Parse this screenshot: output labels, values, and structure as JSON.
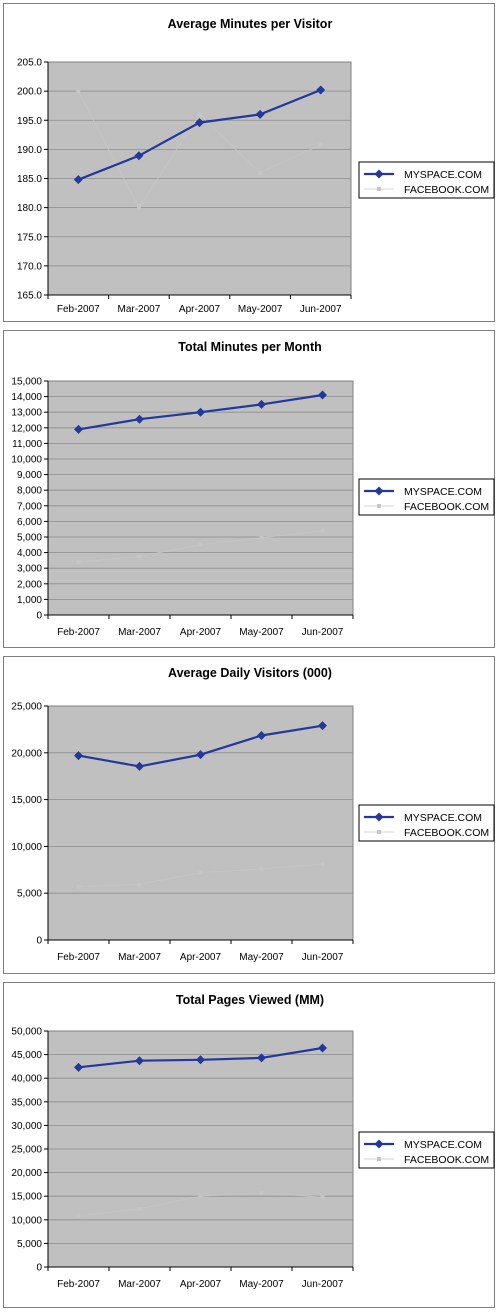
{
  "chart_data": [
    {
      "type": "line",
      "title": "Average Minutes per Visitor",
      "categories": [
        "Feb-2007",
        "Mar-2007",
        "Apr-2007",
        "May-2007",
        "Jun-2007"
      ],
      "ylim": [
        165,
        205
      ],
      "yticks": [
        "165.0",
        "170.0",
        "175.0",
        "180.0",
        "185.0",
        "190.0",
        "195.0",
        "200.0",
        "205.0"
      ],
      "series": [
        {
          "name": "MYSPACE.COM",
          "values": [
            184.8,
            188.9,
            194.6,
            196.0,
            200.2
          ]
        },
        {
          "name": "FACEBOOK.COM",
          "values": [
            200.0,
            180.0,
            196.0,
            186.0,
            190.8
          ]
        }
      ],
      "legend": "right"
    },
    {
      "type": "line",
      "title": "Total Minutes per Month",
      "categories": [
        "Feb-2007",
        "Mar-2007",
        "Apr-2007",
        "May-2007",
        "Jun-2007"
      ],
      "ylim": [
        0,
        15000
      ],
      "yticks": [
        "0",
        "1,000",
        "2,000",
        "3,000",
        "4,000",
        "5,000",
        "6,000",
        "7,000",
        "8,000",
        "9,000",
        "10,000",
        "11,000",
        "12,000",
        "13,000",
        "14,000",
        "15,000"
      ],
      "series": [
        {
          "name": "MYSPACE.COM",
          "values": [
            11900,
            12550,
            13000,
            13500,
            14100
          ]
        },
        {
          "name": "FACEBOOK.COM",
          "values": [
            3400,
            3750,
            4500,
            4950,
            5400
          ]
        }
      ],
      "legend": "right"
    },
    {
      "type": "line",
      "title": "Average Daily Visitors (000)",
      "categories": [
        "Feb-2007",
        "Mar-2007",
        "Apr-2007",
        "May-2007",
        "Jun-2007"
      ],
      "ylim": [
        0,
        25000
      ],
      "yticks": [
        "0",
        "5,000",
        "10,000",
        "15,000",
        "20,000",
        "25,000"
      ],
      "series": [
        {
          "name": "MYSPACE.COM",
          "values": [
            19700,
            18550,
            19800,
            21850,
            22900
          ]
        },
        {
          "name": "FACEBOOK.COM",
          "values": [
            5700,
            5950,
            7200,
            7600,
            8100
          ]
        }
      ],
      "legend": "right"
    },
    {
      "type": "line",
      "title": "Total Pages Viewed (MM)",
      "categories": [
        "Feb-2007",
        "Mar-2007",
        "Apr-2007",
        "May-2007",
        "Jun-2007"
      ],
      "ylim": [
        0,
        50000
      ],
      "yticks": [
        "0",
        "5,000",
        "10,000",
        "15,000",
        "20,000",
        "25,000",
        "30,000",
        "35,000",
        "40,000",
        "45,000",
        "50,000"
      ],
      "series": [
        {
          "name": "MYSPACE.COM",
          "values": [
            42300,
            43700,
            43900,
            44300,
            46400
          ]
        },
        {
          "name": "FACEBOOK.COM",
          "values": [
            10900,
            12300,
            15000,
            15700,
            14800
          ]
        }
      ],
      "legend": "right"
    }
  ],
  "colors": {
    "myspace": "#23389a",
    "facebook": "#c6c6c6",
    "plot_background": "#c0c0c0",
    "gridline": "#8c8c8c"
  }
}
